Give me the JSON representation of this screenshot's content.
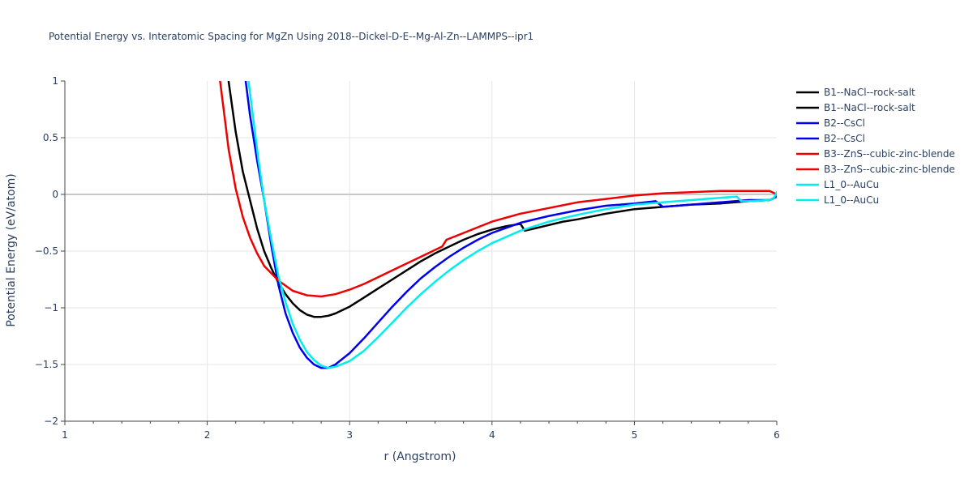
{
  "chart_data": {
    "type": "line",
    "title": "Potential Energy vs. Interatomic Spacing for MgZn Using 2018--Dickel-D-E--Mg-Al-Zn--LAMMPS--ipr1",
    "xlabel": "r (Angstrom)",
    "ylabel": "Potential Energy (eV/atom)",
    "xlim": [
      1,
      6
    ],
    "ylim": [
      -2,
      1
    ],
    "xticks": [
      "1",
      "2",
      "3",
      "4",
      "5",
      "6"
    ],
    "yticks": [
      "1",
      "0.5",
      "0",
      "−0.5",
      "−1",
      "−1.5",
      "−2"
    ],
    "grid": true,
    "legend_position": "right",
    "series": [
      {
        "name": "B1--NaCl--rock-salt",
        "color": "#000000",
        "points": [
          [
            2.15,
            1.0
          ],
          [
            2.2,
            0.55
          ],
          [
            2.25,
            0.2
          ],
          [
            2.3,
            -0.05
          ],
          [
            2.35,
            -0.3
          ],
          [
            2.4,
            -0.5
          ],
          [
            2.45,
            -0.65
          ],
          [
            2.5,
            -0.78
          ],
          [
            2.55,
            -0.88
          ],
          [
            2.6,
            -0.96
          ],
          [
            2.65,
            -1.02
          ],
          [
            2.7,
            -1.06
          ],
          [
            2.75,
            -1.08
          ],
          [
            2.8,
            -1.08
          ],
          [
            2.85,
            -1.07
          ],
          [
            2.9,
            -1.05
          ],
          [
            3.0,
            -0.99
          ],
          [
            3.1,
            -0.91
          ],
          [
            3.2,
            -0.83
          ],
          [
            3.3,
            -0.75
          ],
          [
            3.4,
            -0.67
          ],
          [
            3.5,
            -0.59
          ],
          [
            3.6,
            -0.52
          ],
          [
            3.7,
            -0.46
          ],
          [
            3.8,
            -0.4
          ],
          [
            3.9,
            -0.35
          ],
          [
            4.0,
            -0.31
          ],
          [
            4.1,
            -0.28
          ],
          [
            4.2,
            -0.26
          ],
          [
            4.23,
            -0.32
          ],
          [
            4.3,
            -0.3
          ],
          [
            4.4,
            -0.27
          ],
          [
            4.5,
            -0.24
          ],
          [
            4.6,
            -0.22
          ],
          [
            4.8,
            -0.17
          ],
          [
            5.0,
            -0.13
          ],
          [
            5.2,
            -0.11
          ],
          [
            5.4,
            -0.09
          ],
          [
            5.6,
            -0.08
          ],
          [
            5.8,
            -0.06
          ],
          [
            5.95,
            -0.05
          ],
          [
            6.0,
            -0.02
          ]
        ]
      },
      {
        "name": "B2--CsCl",
        "color": "#0000ee",
        "points": [
          [
            2.27,
            1.0
          ],
          [
            2.3,
            0.7
          ],
          [
            2.35,
            0.3
          ],
          [
            2.4,
            -0.05
          ],
          [
            2.45,
            -0.45
          ],
          [
            2.5,
            -0.8
          ],
          [
            2.55,
            -1.05
          ],
          [
            2.6,
            -1.22
          ],
          [
            2.65,
            -1.35
          ],
          [
            2.7,
            -1.44
          ],
          [
            2.75,
            -1.5
          ],
          [
            2.8,
            -1.53
          ],
          [
            2.85,
            -1.53
          ],
          [
            2.9,
            -1.5
          ],
          [
            3.0,
            -1.4
          ],
          [
            3.1,
            -1.27
          ],
          [
            3.2,
            -1.13
          ],
          [
            3.3,
            -0.99
          ],
          [
            3.4,
            -0.86
          ],
          [
            3.5,
            -0.74
          ],
          [
            3.6,
            -0.64
          ],
          [
            3.7,
            -0.55
          ],
          [
            3.8,
            -0.47
          ],
          [
            3.9,
            -0.4
          ],
          [
            4.0,
            -0.34
          ],
          [
            4.2,
            -0.25
          ],
          [
            4.4,
            -0.19
          ],
          [
            4.6,
            -0.14
          ],
          [
            4.8,
            -0.1
          ],
          [
            5.0,
            -0.08
          ],
          [
            5.15,
            -0.06
          ],
          [
            5.2,
            -0.11
          ],
          [
            5.4,
            -0.09
          ],
          [
            5.6,
            -0.07
          ],
          [
            5.8,
            -0.05
          ],
          [
            5.95,
            -0.05
          ],
          [
            6.0,
            -0.02
          ]
        ]
      },
      {
        "name": "B3--ZnS--cubic-zinc-blende",
        "color": "#ee0000",
        "points": [
          [
            2.09,
            1.0
          ],
          [
            2.12,
            0.7
          ],
          [
            2.15,
            0.4
          ],
          [
            2.2,
            0.05
          ],
          [
            2.25,
            -0.2
          ],
          [
            2.3,
            -0.38
          ],
          [
            2.35,
            -0.52
          ],
          [
            2.4,
            -0.63
          ],
          [
            2.5,
            -0.76
          ],
          [
            2.6,
            -0.85
          ],
          [
            2.7,
            -0.89
          ],
          [
            2.8,
            -0.9
          ],
          [
            2.9,
            -0.88
          ],
          [
            3.0,
            -0.84
          ],
          [
            3.1,
            -0.79
          ],
          [
            3.2,
            -0.73
          ],
          [
            3.3,
            -0.67
          ],
          [
            3.4,
            -0.61
          ],
          [
            3.5,
            -0.55
          ],
          [
            3.65,
            -0.46
          ],
          [
            3.68,
            -0.4
          ],
          [
            3.8,
            -0.34
          ],
          [
            3.9,
            -0.29
          ],
          [
            4.0,
            -0.24
          ],
          [
            4.2,
            -0.17
          ],
          [
            4.4,
            -0.12
          ],
          [
            4.6,
            -0.07
          ],
          [
            4.8,
            -0.04
          ],
          [
            5.0,
            -0.01
          ],
          [
            5.2,
            0.01
          ],
          [
            5.4,
            0.02
          ],
          [
            5.6,
            0.03
          ],
          [
            5.8,
            0.03
          ],
          [
            5.95,
            0.03
          ],
          [
            6.0,
            0.0
          ]
        ]
      },
      {
        "name": "L1_0--AuCu",
        "color": "#00eeee",
        "points": [
          [
            2.29,
            1.0
          ],
          [
            2.32,
            0.7
          ],
          [
            2.36,
            0.3
          ],
          [
            2.4,
            -0.05
          ],
          [
            2.45,
            -0.4
          ],
          [
            2.5,
            -0.72
          ],
          [
            2.55,
            -0.95
          ],
          [
            2.6,
            -1.14
          ],
          [
            2.65,
            -1.28
          ],
          [
            2.7,
            -1.39
          ],
          [
            2.75,
            -1.46
          ],
          [
            2.8,
            -1.51
          ],
          [
            2.85,
            -1.53
          ],
          [
            2.9,
            -1.52
          ],
          [
            3.0,
            -1.47
          ],
          [
            3.1,
            -1.38
          ],
          [
            3.2,
            -1.26
          ],
          [
            3.3,
            -1.13
          ],
          [
            3.4,
            -1.0
          ],
          [
            3.5,
            -0.88
          ],
          [
            3.6,
            -0.77
          ],
          [
            3.7,
            -0.67
          ],
          [
            3.8,
            -0.58
          ],
          [
            3.9,
            -0.5
          ],
          [
            4.0,
            -0.43
          ],
          [
            4.2,
            -0.32
          ],
          [
            4.4,
            -0.24
          ],
          [
            4.6,
            -0.18
          ],
          [
            4.8,
            -0.13
          ],
          [
            5.0,
            -0.09
          ],
          [
            5.2,
            -0.07
          ],
          [
            5.4,
            -0.05
          ],
          [
            5.6,
            -0.03
          ],
          [
            5.72,
            -0.02
          ],
          [
            5.75,
            -0.06
          ],
          [
            5.8,
            -0.06
          ],
          [
            5.95,
            -0.05
          ],
          [
            5.98,
            -0.03
          ],
          [
            6.0,
            0.02
          ]
        ]
      }
    ],
    "legend_entries": [
      {
        "label": "B1--NaCl--rock-salt",
        "color": "#000000"
      },
      {
        "label": "B1--NaCl--rock-salt",
        "color": "#000000"
      },
      {
        "label": "B2--CsCl",
        "color": "#0000ee"
      },
      {
        "label": "B2--CsCl",
        "color": "#0000ee"
      },
      {
        "label": "B3--ZnS--cubic-zinc-blende",
        "color": "#ee0000"
      },
      {
        "label": "B3--ZnS--cubic-zinc-blende",
        "color": "#ee0000"
      },
      {
        "label": "L1_0--AuCu",
        "color": "#00eeee"
      },
      {
        "label": "L1_0--AuCu",
        "color": "#00eeee"
      }
    ]
  }
}
